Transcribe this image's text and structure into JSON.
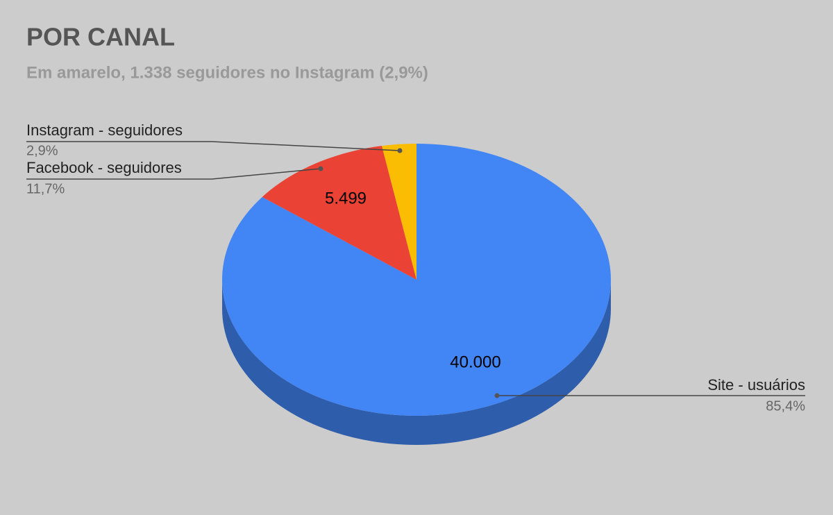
{
  "chart_data": {
    "type": "pie3d",
    "title": "POR CANAL",
    "subtitle": "Em amarelo, 1.338 seguidores no Instagram (2,9%)",
    "categories": [
      "Site - usuários",
      "Facebook - seguidores",
      "Instagram - seguidores"
    ],
    "values": [
      40000,
      5499,
      1338
    ],
    "value_labels": [
      "40.000",
      "5.499",
      null
    ],
    "percentages": [
      85.4,
      11.7,
      2.9
    ],
    "percentage_labels": [
      "85,4%",
      "11,7%",
      "2,9%"
    ],
    "colors": [
      "#4285f4",
      "#ea4335",
      "#fbbc04"
    ]
  }
}
